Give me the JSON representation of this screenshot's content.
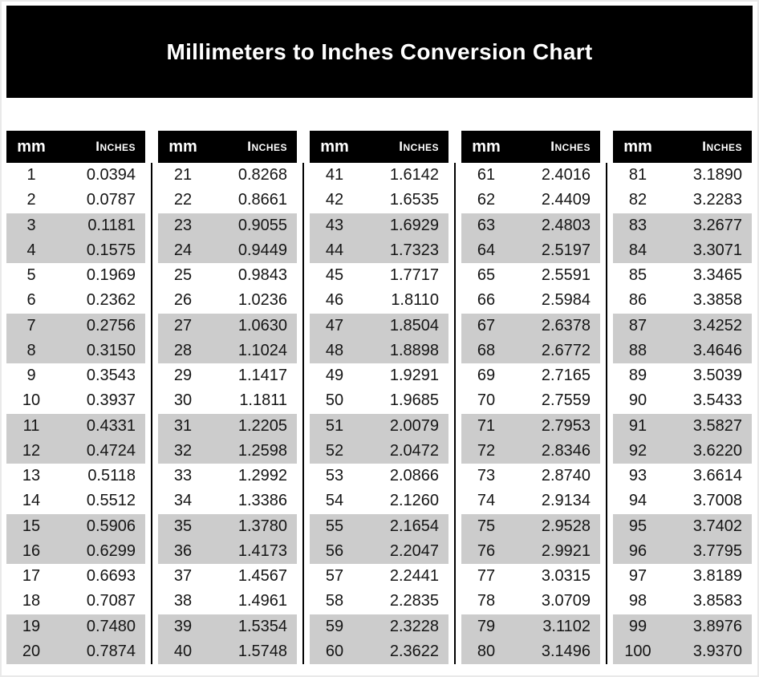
{
  "title": "Millimeters to Inches Conversion Chart",
  "colors": {
    "banner_bg": "#000000",
    "banner_text": "#ffffff",
    "header_bg": "#000000",
    "header_text": "#ffffff",
    "stripe_gray": "#cccccc",
    "cell_text": "#151515",
    "divider": "#000000"
  },
  "chart_data": {
    "type": "table",
    "title": "Millimeters to Inches Conversion Chart",
    "columns": [
      "mm",
      "Inches"
    ],
    "layout": "5 side-by-side sub-tables of 20 rows, gray striping on row pairs, black vertical dividers between tables",
    "tables": [
      {
        "rows": [
          [
            "1",
            "0.0394"
          ],
          [
            "2",
            "0.0787"
          ],
          [
            "3",
            "0.1181"
          ],
          [
            "4",
            "0.1575"
          ],
          [
            "5",
            "0.1969"
          ],
          [
            "6",
            "0.2362"
          ],
          [
            "7",
            "0.2756"
          ],
          [
            "8",
            "0.3150"
          ],
          [
            "9",
            "0.3543"
          ],
          [
            "10",
            "0.3937"
          ],
          [
            "11",
            "0.4331"
          ],
          [
            "12",
            "0.4724"
          ],
          [
            "13",
            "0.5118"
          ],
          [
            "14",
            "0.5512"
          ],
          [
            "15",
            "0.5906"
          ],
          [
            "16",
            "0.6299"
          ],
          [
            "17",
            "0.6693"
          ],
          [
            "18",
            "0.7087"
          ],
          [
            "19",
            "0.7480"
          ],
          [
            "20",
            "0.7874"
          ]
        ]
      },
      {
        "rows": [
          [
            "21",
            "0.8268"
          ],
          [
            "22",
            "0.8661"
          ],
          [
            "23",
            "0.9055"
          ],
          [
            "24",
            "0.9449"
          ],
          [
            "25",
            "0.9843"
          ],
          [
            "26",
            "1.0236"
          ],
          [
            "27",
            "1.0630"
          ],
          [
            "28",
            "1.1024"
          ],
          [
            "29",
            "1.1417"
          ],
          [
            "30",
            "1.1811"
          ],
          [
            "31",
            "1.2205"
          ],
          [
            "32",
            "1.2598"
          ],
          [
            "33",
            "1.2992"
          ],
          [
            "34",
            "1.3386"
          ],
          [
            "35",
            "1.3780"
          ],
          [
            "36",
            "1.4173"
          ],
          [
            "37",
            "1.4567"
          ],
          [
            "38",
            "1.4961"
          ],
          [
            "39",
            "1.5354"
          ],
          [
            "40",
            "1.5748"
          ]
        ]
      },
      {
        "rows": [
          [
            "41",
            "1.6142"
          ],
          [
            "42",
            "1.6535"
          ],
          [
            "43",
            "1.6929"
          ],
          [
            "44",
            "1.7323"
          ],
          [
            "45",
            "1.7717"
          ],
          [
            "46",
            "1.8110"
          ],
          [
            "47",
            "1.8504"
          ],
          [
            "48",
            "1.8898"
          ],
          [
            "49",
            "1.9291"
          ],
          [
            "50",
            "1.9685"
          ],
          [
            "51",
            "2.0079"
          ],
          [
            "52",
            "2.0472"
          ],
          [
            "53",
            "2.0866"
          ],
          [
            "54",
            "2.1260"
          ],
          [
            "55",
            "2.1654"
          ],
          [
            "56",
            "2.2047"
          ],
          [
            "57",
            "2.2441"
          ],
          [
            "58",
            "2.2835"
          ],
          [
            "59",
            "2.3228"
          ],
          [
            "60",
            "2.3622"
          ]
        ]
      },
      {
        "rows": [
          [
            "61",
            "2.4016"
          ],
          [
            "62",
            "2.4409"
          ],
          [
            "63",
            "2.4803"
          ],
          [
            "64",
            "2.5197"
          ],
          [
            "65",
            "2.5591"
          ],
          [
            "66",
            "2.5984"
          ],
          [
            "67",
            "2.6378"
          ],
          [
            "68",
            "2.6772"
          ],
          [
            "69",
            "2.7165"
          ],
          [
            "70",
            "2.7559"
          ],
          [
            "71",
            "2.7953"
          ],
          [
            "72",
            "2.8346"
          ],
          [
            "73",
            "2.8740"
          ],
          [
            "74",
            "2.9134"
          ],
          [
            "75",
            "2.9528"
          ],
          [
            "76",
            "2.9921"
          ],
          [
            "77",
            "3.0315"
          ],
          [
            "78",
            "3.0709"
          ],
          [
            "79",
            "3.1102"
          ],
          [
            "80",
            "3.1496"
          ]
        ]
      },
      {
        "rows": [
          [
            "81",
            "3.1890"
          ],
          [
            "82",
            "3.2283"
          ],
          [
            "83",
            "3.2677"
          ],
          [
            "84",
            "3.3071"
          ],
          [
            "85",
            "3.3465"
          ],
          [
            "86",
            "3.3858"
          ],
          [
            "87",
            "3.4252"
          ],
          [
            "88",
            "3.4646"
          ],
          [
            "89",
            "3.5039"
          ],
          [
            "90",
            "3.5433"
          ],
          [
            "91",
            "3.5827"
          ],
          [
            "92",
            "3.6220"
          ],
          [
            "93",
            "3.6614"
          ],
          [
            "94",
            "3.7008"
          ],
          [
            "95",
            "3.7402"
          ],
          [
            "96",
            "3.7795"
          ],
          [
            "97",
            "3.8189"
          ],
          [
            "98",
            "3.8583"
          ],
          [
            "99",
            "3.8976"
          ],
          [
            "100",
            "3.9370"
          ]
        ]
      }
    ]
  }
}
